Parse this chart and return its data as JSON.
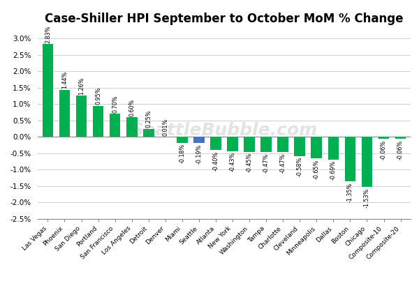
{
  "title": "Case-Shiller HPI September to October MoM % Change",
  "categories": [
    "Las Vegas",
    "Phoenix",
    "San Diego",
    "Portland",
    "San Francisco",
    "Los Angeles",
    "Detroit",
    "Denver",
    "Miami",
    "Seattle",
    "Atlanta",
    "New York",
    "Washington",
    "Tampa",
    "Charlotte",
    "Cleveland",
    "Minneapolis",
    "Dallas",
    "Boston",
    "Chicago",
    "Composite-10",
    "Composite-20"
  ],
  "values": [
    2.83,
    1.44,
    1.26,
    0.95,
    0.7,
    0.6,
    0.25,
    0.01,
    -0.18,
    -0.19,
    -0.4,
    -0.43,
    -0.45,
    -0.47,
    -0.47,
    -0.58,
    -0.65,
    -0.69,
    -1.35,
    -1.53,
    -0.06,
    -0.06
  ],
  "bar_colors": [
    "#00b050",
    "#00b050",
    "#00b050",
    "#00b050",
    "#00b050",
    "#00b050",
    "#00b050",
    "#00b050",
    "#00b050",
    "#4472c4",
    "#00b050",
    "#00b050",
    "#00b050",
    "#00b050",
    "#00b050",
    "#00b050",
    "#00b050",
    "#00b050",
    "#00b050",
    "#00b050",
    "#00b050",
    "#00b050"
  ],
  "ylim": [
    -2.5,
    3.25
  ],
  "yticks": [
    -2.5,
    -2.0,
    -1.5,
    -1.0,
    -0.5,
    0.0,
    0.5,
    1.0,
    1.5,
    2.0,
    2.5,
    3.0
  ],
  "label_fontsize": 5.8,
  "xtick_fontsize": 6.5,
  "ytick_fontsize": 7.5,
  "title_fontsize": 12,
  "background_color": "#ffffff",
  "watermark": "SeattleBubble.com",
  "bar_width": 0.65
}
